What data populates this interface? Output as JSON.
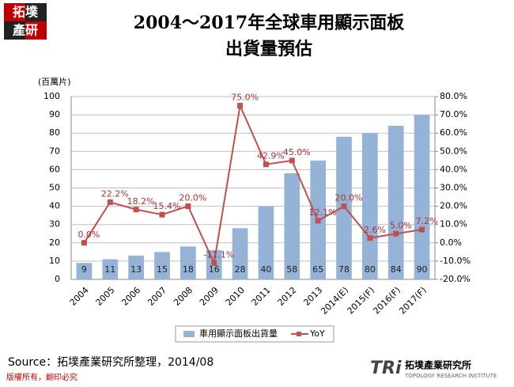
{
  "logo": {
    "line1": "拓墣",
    "line2": "產研"
  },
  "chart_data": {
    "type": "bar-line",
    "title": "2004～2017年全球車用顯示面板",
    "subtitle": "出貨量預估",
    "y_label": "(百萬片)",
    "categories": [
      "2004",
      "2005",
      "2006",
      "2007",
      "2008",
      "2009",
      "2010",
      "2011",
      "2012",
      "2013",
      "2014(E)",
      "2015(F)",
      "2016(F)",
      "2017(F)"
    ],
    "series": [
      {
        "name": "車用顯示面板出貨量",
        "type": "bar",
        "color": "#95b3d7",
        "values": [
          9,
          11,
          13,
          15,
          18,
          16,
          28,
          40,
          58,
          65,
          78,
          80,
          84,
          90
        ]
      },
      {
        "name": "YoY",
        "type": "line",
        "axis": "y2",
        "color": "#c0504d",
        "values": [
          0.0,
          22.2,
          18.2,
          15.4,
          20.0,
          -11.1,
          75.0,
          42.9,
          45.0,
          12.1,
          20.0,
          2.6,
          5.0,
          7.2
        ],
        "value_labels": [
          "0.0%",
          "22.2%",
          "18.2%",
          "15.4%",
          "20.0%",
          "-11.1%",
          "75.0%",
          "42.9%",
          "45.0%",
          "12.1%",
          "20.0%",
          "2.6%",
          "5.0%",
          "7.2%"
        ]
      }
    ],
    "ylim": [
      0,
      100
    ],
    "yticks": [
      0,
      10,
      20,
      30,
      40,
      50,
      60,
      70,
      80,
      90,
      100
    ],
    "y2lim": [
      -20,
      80
    ],
    "y2ticks": [
      {
        "value": -20,
        "label": "-20.0%"
      },
      {
        "value": -10,
        "label": "-10.0%"
      },
      {
        "value": 0,
        "label": "0.0%"
      },
      {
        "value": 10,
        "label": "10.0%"
      },
      {
        "value": 20,
        "label": "20.0%"
      },
      {
        "value": 30,
        "label": "30.0%"
      },
      {
        "value": 40,
        "label": "40.0%"
      },
      {
        "value": 50,
        "label": "50.0%"
      },
      {
        "value": 60,
        "label": "60.0%"
      },
      {
        "value": 70,
        "label": "70.0%"
      },
      {
        "value": 80,
        "label": "80.0%"
      }
    ],
    "grid": true,
    "legend": "bottom"
  },
  "source": "Source：拓墣產業研究所整理，2014/08",
  "footer": "版權所有，翻印必究",
  "brand": {
    "mark": "TRi",
    "name": "拓墣產業研究所",
    "english": "TOPOLOGY RESEARCH INSTITUTE"
  }
}
